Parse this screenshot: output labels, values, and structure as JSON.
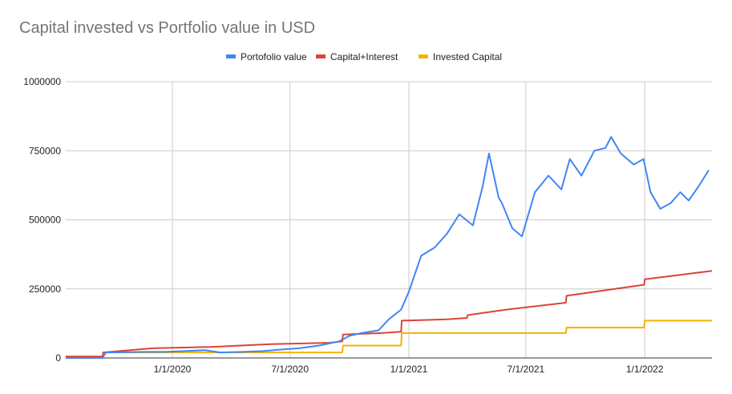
{
  "chart_data": {
    "type": "line",
    "title": "Capital invested vs Portfolio value in USD",
    "xlabel": "",
    "ylabel": "",
    "ylim": [
      0,
      1000000
    ],
    "xlim": [
      "2019-07-20",
      "2022-04-15"
    ],
    "grid": true,
    "legend_position": "top",
    "y_ticks": [
      {
        "value": 0,
        "label": "0"
      },
      {
        "value": 250000,
        "label": "250000"
      },
      {
        "value": 500000,
        "label": "500000"
      },
      {
        "value": 750000,
        "label": "750000"
      },
      {
        "value": 1000000,
        "label": "1000000"
      }
    ],
    "x_ticks": [
      {
        "date": "2020-01-01",
        "label": "1/1/2020"
      },
      {
        "date": "2020-07-01",
        "label": "7/1/2020"
      },
      {
        "date": "2021-01-01",
        "label": "1/1/2021"
      },
      {
        "date": "2021-07-01",
        "label": "7/1/2021"
      },
      {
        "date": "2022-01-01",
        "label": "1/1/2022"
      }
    ],
    "series": [
      {
        "name": "Portofolio value",
        "color": "#4285f4",
        "x": [
          "2019-07-20",
          "2019-09-15",
          "2019-09-20",
          "2019-10-20",
          "2019-11-20",
          "2019-12-20",
          "2020-01-20",
          "2020-02-20",
          "2020-03-15",
          "2020-04-20",
          "2020-05-20",
          "2020-06-15",
          "2020-07-15",
          "2020-08-15",
          "2020-09-15",
          "2020-10-01",
          "2020-10-20",
          "2020-11-15",
          "2020-12-01",
          "2020-12-20",
          "2021-01-01",
          "2021-01-20",
          "2021-02-10",
          "2021-03-01",
          "2021-03-20",
          "2021-04-10",
          "2021-04-25",
          "2021-05-05",
          "2021-05-20",
          "2021-05-25",
          "2021-06-10",
          "2021-06-25",
          "2021-07-15",
          "2021-08-05",
          "2021-08-25",
          "2021-09-07",
          "2021-09-25",
          "2021-10-15",
          "2021-11-01",
          "2021-11-10",
          "2021-11-25",
          "2021-12-15",
          "2021-12-30",
          "2022-01-10",
          "2022-01-25",
          "2022-02-10",
          "2022-02-25",
          "2022-03-10",
          "2022-03-25",
          "2022-04-10"
        ],
        "values": [
          0,
          0,
          20000,
          21000,
          22000,
          22000,
          25000,
          28000,
          20000,
          22000,
          25000,
          30000,
          35000,
          45000,
          60000,
          80000,
          90000,
          100000,
          140000,
          175000,
          240000,
          370000,
          400000,
          450000,
          520000,
          480000,
          620000,
          740000,
          580000,
          560000,
          470000,
          440000,
          600000,
          660000,
          610000,
          720000,
          660000,
          750000,
          760000,
          800000,
          740000,
          700000,
          720000,
          600000,
          540000,
          560000,
          600000,
          570000,
          620000,
          680000
        ]
      },
      {
        "name": "Capital+Interest",
        "color": "#db4437",
        "x": [
          "2019-07-20",
          "2019-09-15",
          "2019-09-16",
          "2019-12-01",
          "2020-03-01",
          "2020-06-01",
          "2020-09-01",
          "2020-09-20",
          "2020-09-21",
          "2020-11-20",
          "2020-12-20",
          "2020-12-21",
          "2021-03-01",
          "2021-04-01",
          "2021-04-02",
          "2021-06-01",
          "2021-09-01",
          "2021-09-02",
          "2021-12-01",
          "2021-12-31",
          "2022-01-01",
          "2022-04-15"
        ],
        "values": [
          5000,
          5000,
          20000,
          35000,
          40000,
          50000,
          55000,
          60000,
          85000,
          90000,
          95000,
          135000,
          140000,
          145000,
          155000,
          175000,
          200000,
          225000,
          255000,
          265000,
          285000,
          315000
        ]
      },
      {
        "name": "Invested Capital",
        "color": "#f4b400",
        "x": [
          "2019-07-20",
          "2019-09-15",
          "2019-09-16",
          "2020-09-20",
          "2020-09-21",
          "2020-12-20",
          "2020-12-21",
          "2021-09-01",
          "2021-09-02",
          "2021-12-31",
          "2022-01-01",
          "2022-04-15"
        ],
        "values": [
          5000,
          5000,
          20000,
          20000,
          45000,
          45000,
          90000,
          90000,
          110000,
          110000,
          135000,
          135000
        ]
      }
    ]
  }
}
